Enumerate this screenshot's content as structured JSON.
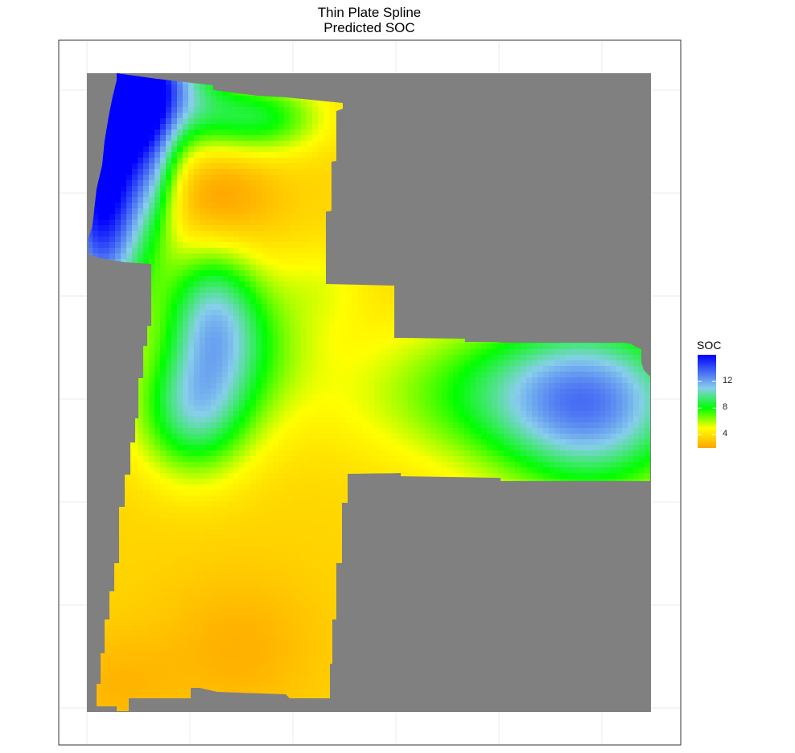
{
  "chart_data": {
    "type": "heatmap",
    "title": "Thin Plate Spline",
    "subtitle": "Predicted SOC",
    "xlabel": "",
    "ylabel": "",
    "grid": true,
    "legend": {
      "title": "SOC",
      "placement": "right",
      "ticks": [
        {
          "value": 12,
          "label": "12"
        },
        {
          "value": 8,
          "label": "8"
        },
        {
          "value": 4,
          "label": "4"
        }
      ],
      "range": [
        2,
        16
      ]
    },
    "colors": {
      "na_fill": "#808080",
      "panel_border": "#333333",
      "grid": "#ebebeb",
      "gradient": [
        {
          "value": 2,
          "color": "#ffa500"
        },
        {
          "value": 5,
          "color": "#ffff00"
        },
        {
          "value": 8,
          "color": "#00ff00"
        },
        {
          "value": 11,
          "color": "#87ceeb"
        },
        {
          "value": 16,
          "color": "#0000ff"
        }
      ]
    },
    "surface": {
      "base": 3.6,
      "hotspots": [
        {
          "x": 0.05,
          "y": 0.02,
          "amp": 12.5,
          "sx": 0.06,
          "sy": 0.16
        },
        {
          "x": 0.02,
          "y": 0.24,
          "amp": 7.5,
          "sx": 0.05,
          "sy": 0.12
        },
        {
          "x": 0.14,
          "y": 0.02,
          "amp": 6.5,
          "sx": 0.07,
          "sy": 0.06
        },
        {
          "x": 0.3,
          "y": 0.07,
          "amp": 4.8,
          "sx": 0.08,
          "sy": 0.04
        },
        {
          "x": 0.22,
          "y": 0.38,
          "amp": 6.0,
          "sx": 0.06,
          "sy": 0.08
        },
        {
          "x": 0.19,
          "y": 0.53,
          "amp": 6.0,
          "sx": 0.07,
          "sy": 0.07
        },
        {
          "x": 0.3,
          "y": 0.43,
          "amp": 2.5,
          "sx": 0.08,
          "sy": 0.08
        },
        {
          "x": 0.78,
          "y": 0.5,
          "amp": 4.5,
          "sx": 0.2,
          "sy": 0.08
        },
        {
          "x": 0.9,
          "y": 0.53,
          "amp": 6.0,
          "sx": 0.12,
          "sy": 0.1
        },
        {
          "x": 0.12,
          "y": 0.12,
          "amp": 3.0,
          "sx": 0.03,
          "sy": 0.1
        },
        {
          "x": 0.23,
          "y": 0.2,
          "amp": -2.0,
          "sx": 0.07,
          "sy": 0.06
        },
        {
          "x": 0.27,
          "y": 0.9,
          "amp": -1.2,
          "sx": 0.1,
          "sy": 0.08
        },
        {
          "x": 0.05,
          "y": 0.96,
          "amp": -1.0,
          "sx": 0.08,
          "sy": 0.06
        },
        {
          "x": 0.42,
          "y": 0.33,
          "amp": 1.2,
          "sx": 0.06,
          "sy": 0.05
        }
      ]
    }
  }
}
